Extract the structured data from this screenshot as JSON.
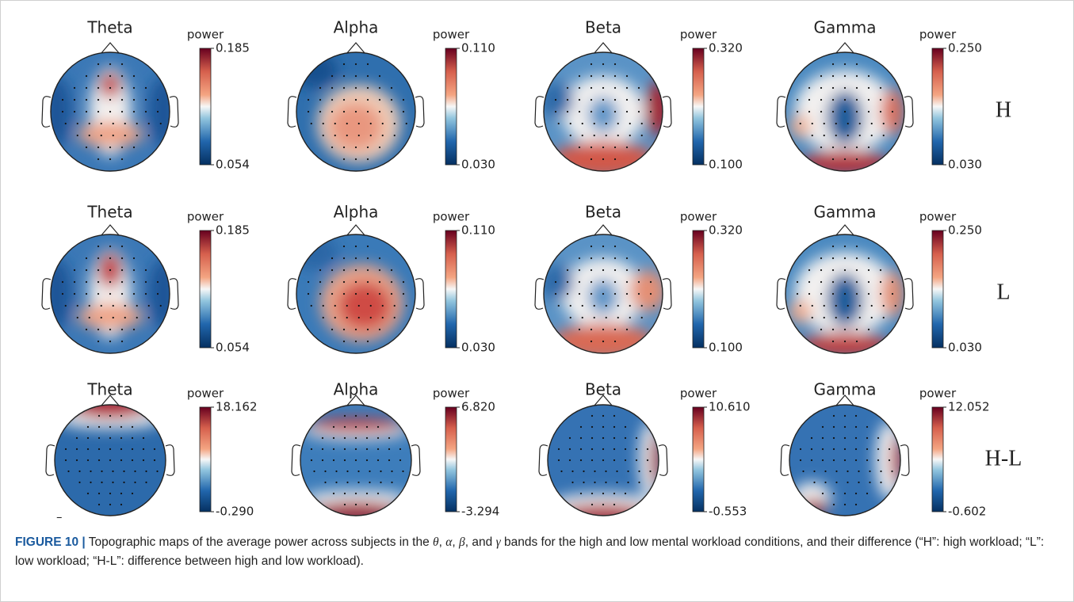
{
  "figure": {
    "rows": [
      {
        "label": "H",
        "panels": [
          {
            "title": "Theta",
            "colorbar_label": "power",
            "max": "0.185",
            "min": "0.054"
          },
          {
            "title": "Alpha",
            "colorbar_label": "power",
            "max": "0.110",
            "min": "0.030"
          },
          {
            "title": "Beta",
            "colorbar_label": "power",
            "max": "0.320",
            "min": "0.100"
          },
          {
            "title": "Gamma",
            "colorbar_label": "power",
            "max": "0.250",
            "min": "0.030"
          }
        ]
      },
      {
        "label": "L",
        "panels": [
          {
            "title": "Theta",
            "colorbar_label": "power",
            "max": "0.185",
            "min": "0.054"
          },
          {
            "title": "Alpha",
            "colorbar_label": "power",
            "max": "0.110",
            "min": "0.030"
          },
          {
            "title": "Beta",
            "colorbar_label": "power",
            "max": "0.320",
            "min": "0.100"
          },
          {
            "title": "Gamma",
            "colorbar_label": "power",
            "max": "0.250",
            "min": "0.030"
          }
        ]
      },
      {
        "label": "H-L",
        "panels": [
          {
            "title": "Theta",
            "colorbar_label": "power",
            "max": "18.162",
            "min": "-0.290"
          },
          {
            "title": "Alpha",
            "colorbar_label": "power",
            "max": "6.820",
            "min": "-3.294"
          },
          {
            "title": "Beta",
            "colorbar_label": "power",
            "max": "10.610",
            "min": "-0.553"
          },
          {
            "title": "Gamma",
            "colorbar_label": "power",
            "max": "12.052",
            "min": "-0.602"
          }
        ]
      }
    ],
    "mark": "–"
  },
  "caption": {
    "label": "FIGURE 10 |",
    "parts": [
      "Topographic maps of the average power across subjects in the ",
      "θ",
      ", ",
      "α",
      ", ",
      "β",
      ", and ",
      "γ",
      " bands for the high and low mental workload conditions, and their difference (“H”: high workload; “L”: low workload; “H-L”: difference between high and low workload)."
    ]
  }
}
